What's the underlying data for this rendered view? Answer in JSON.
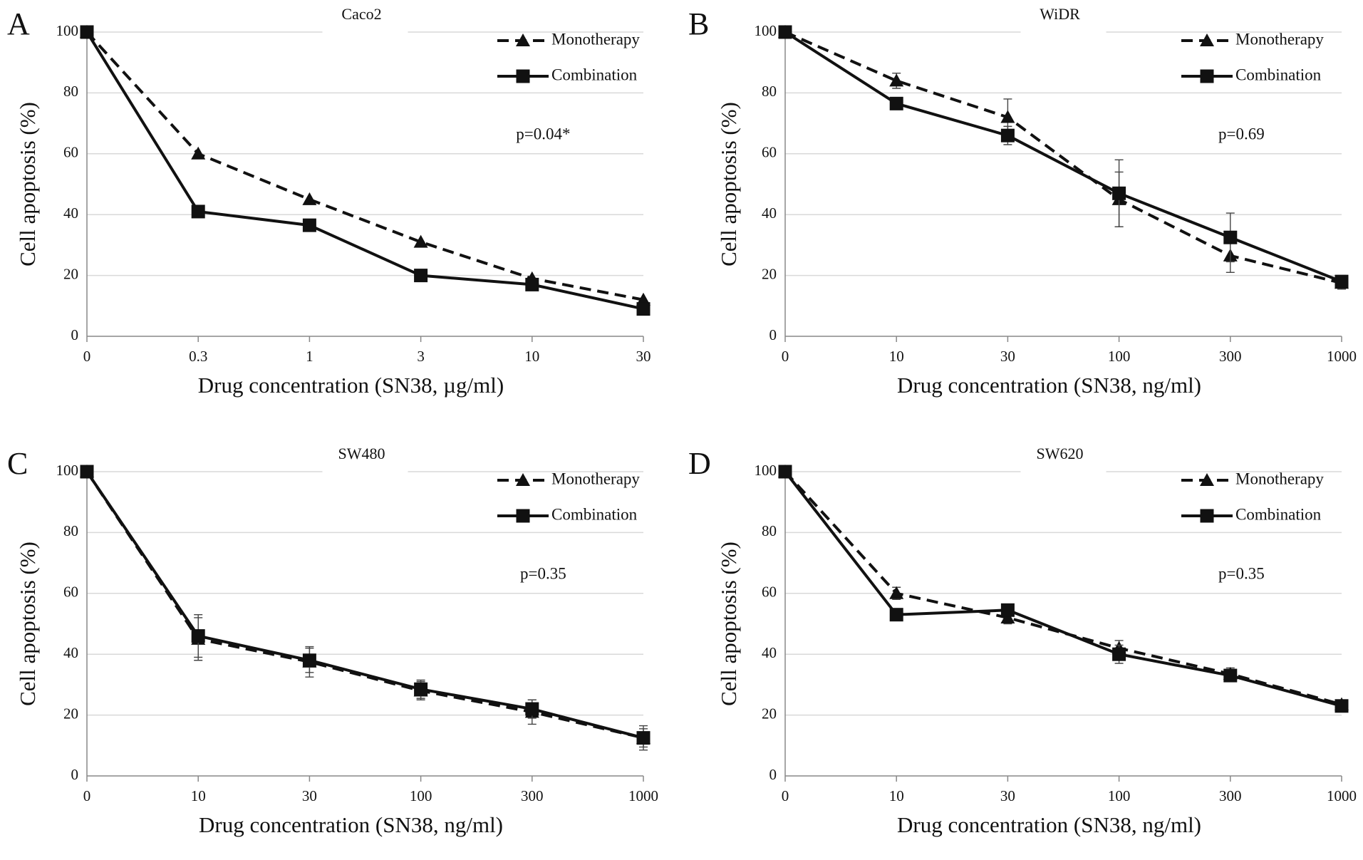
{
  "chart_data": [
    {
      "type": "line",
      "panel": "A",
      "title": "Caco2",
      "xlabel": "Drug concentration (SN38, µg/ml)",
      "ylabel": "Cell apoptosis (%)",
      "annotation": "p=0.04*",
      "categories": [
        "0",
        "0.3",
        "1",
        "3",
        "10",
        "30"
      ],
      "ylim": [
        0,
        100
      ],
      "yticks": [
        0,
        20,
        40,
        60,
        80,
        100
      ],
      "grid": true,
      "legend": "upper right",
      "series": [
        {
          "name": "Monotherapy",
          "color": "#111111",
          "dash": "dashed",
          "marker": "triangle",
          "values": [
            100,
            60,
            45,
            31,
            19,
            12
          ]
        },
        {
          "name": "Combination",
          "color": "#111111",
          "dash": "solid",
          "marker": "square",
          "values": [
            100,
            41,
            36.5,
            20,
            17,
            9
          ]
        }
      ]
    },
    {
      "type": "line",
      "panel": "B",
      "title": "WiDR",
      "xlabel": "Drug concentration (SN38, ng/ml)",
      "ylabel": "Cell apoptosis (%)",
      "annotation": "p=0.69",
      "categories": [
        "0",
        "10",
        "30",
        "100",
        "300",
        "1000"
      ],
      "ylim": [
        0,
        100
      ],
      "yticks": [
        0,
        20,
        40,
        60,
        80,
        100
      ],
      "grid": true,
      "legend": "upper right",
      "series": [
        {
          "name": "Monotherapy",
          "color": "#111111",
          "dash": "dashed",
          "marker": "triangle",
          "values": [
            100,
            84,
            72,
            45,
            26.5,
            17.5
          ],
          "errors": [
            0,
            2.5,
            6,
            9,
            5.5,
            2
          ]
        },
        {
          "name": "Combination",
          "color": "#111111",
          "dash": "solid",
          "marker": "square",
          "values": [
            100,
            76.5,
            66,
            47,
            32.5,
            18
          ],
          "errors": [
            0,
            1.5,
            3,
            11,
            8,
            2
          ]
        }
      ]
    },
    {
      "type": "line",
      "panel": "C",
      "title": "SW480",
      "xlabel": "Drug concentration (SN38, ng/ml)",
      "ylabel": "Cell apoptosis (%)",
      "annotation": "p=0.35",
      "categories": [
        "0",
        "10",
        "30",
        "100",
        "300",
        "1000"
      ],
      "ylim": [
        0,
        100
      ],
      "yticks": [
        0,
        20,
        40,
        60,
        80,
        100
      ],
      "grid": true,
      "legend": "upper right",
      "series": [
        {
          "name": "Monotherapy",
          "color": "#111111",
          "dash": "dashed",
          "marker": "triangle",
          "values": [
            100,
            45,
            37.5,
            28,
            21,
            12.5
          ],
          "errors": [
            0,
            7,
            5,
            3,
            4,
            4
          ]
        },
        {
          "name": "Combination",
          "color": "#111111",
          "dash": "solid",
          "marker": "square",
          "values": [
            100,
            46,
            38,
            28.5,
            22,
            12.5
          ],
          "errors": [
            0,
            7,
            4,
            3,
            3,
            3
          ]
        }
      ]
    },
    {
      "type": "line",
      "panel": "D",
      "title": "SW620",
      "xlabel": "Drug concentration (SN38, ng/ml)",
      "ylabel": "Cell apoptosis (%)",
      "annotation": "p=0.35",
      "categories": [
        "0",
        "10",
        "30",
        "100",
        "300",
        "1000"
      ],
      "ylim": [
        0,
        100
      ],
      "yticks": [
        0,
        20,
        40,
        60,
        80,
        100
      ],
      "grid": true,
      "legend": "upper right",
      "series": [
        {
          "name": "Monotherapy",
          "color": "#111111",
          "dash": "dashed",
          "marker": "triangle",
          "values": [
            100,
            60,
            52,
            42,
            33.5,
            23.5
          ],
          "errors": [
            0,
            2,
            2,
            2.5,
            2,
            1.5
          ]
        },
        {
          "name": "Combination",
          "color": "#111111",
          "dash": "solid",
          "marker": "square",
          "values": [
            100,
            53,
            54.5,
            40,
            33,
            23
          ],
          "errors": [
            0,
            1,
            2,
            3,
            2,
            1.5
          ]
        }
      ]
    }
  ]
}
